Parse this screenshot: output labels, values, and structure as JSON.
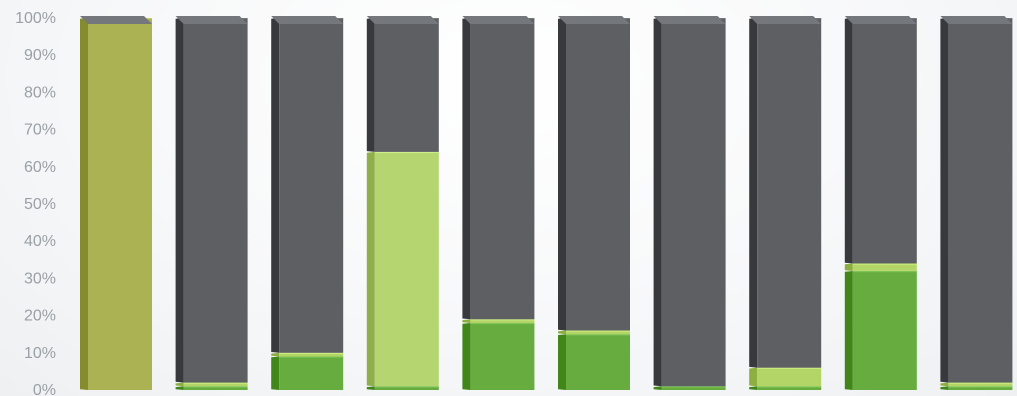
{
  "chart_data": {
    "type": "bar",
    "stacked": true,
    "orientation": "vertical",
    "categories": [
      "",
      "",
      "",
      "",
      "",
      "",
      "",
      "",
      "",
      ""
    ],
    "series": [
      {
        "values": [
          0,
          1,
          9,
          1,
          18,
          15,
          1,
          1,
          32,
          1
        ]
      },
      {
        "values": [
          0,
          1,
          1,
          0,
          1,
          1,
          0,
          5,
          2,
          1
        ]
      },
      {
        "values": [
          100,
          0,
          0,
          63,
          0,
          0,
          0,
          0,
          0,
          0
        ]
      },
      {
        "values": [
          0,
          98,
          90,
          36,
          81,
          84,
          99,
          94,
          66,
          98
        ]
      }
    ],
    "y_ticks": [
      "0%",
      "10%",
      "20%",
      "30%",
      "40%",
      "50%",
      "60%",
      "70%",
      "80%",
      "90%",
      "100%"
    ],
    "ylim": [
      0,
      100
    ],
    "grid": false,
    "legend": false,
    "colors": {
      "series_fill": [
        "#66ac3f",
        "#b3d466",
        "#b4d56f",
        "#5d5f63"
      ],
      "series_fill_100pct": "#abb254",
      "cap_top": "#74777c",
      "cap_side": "#3a3c40",
      "axis_label": "#9aa0a6"
    }
  }
}
